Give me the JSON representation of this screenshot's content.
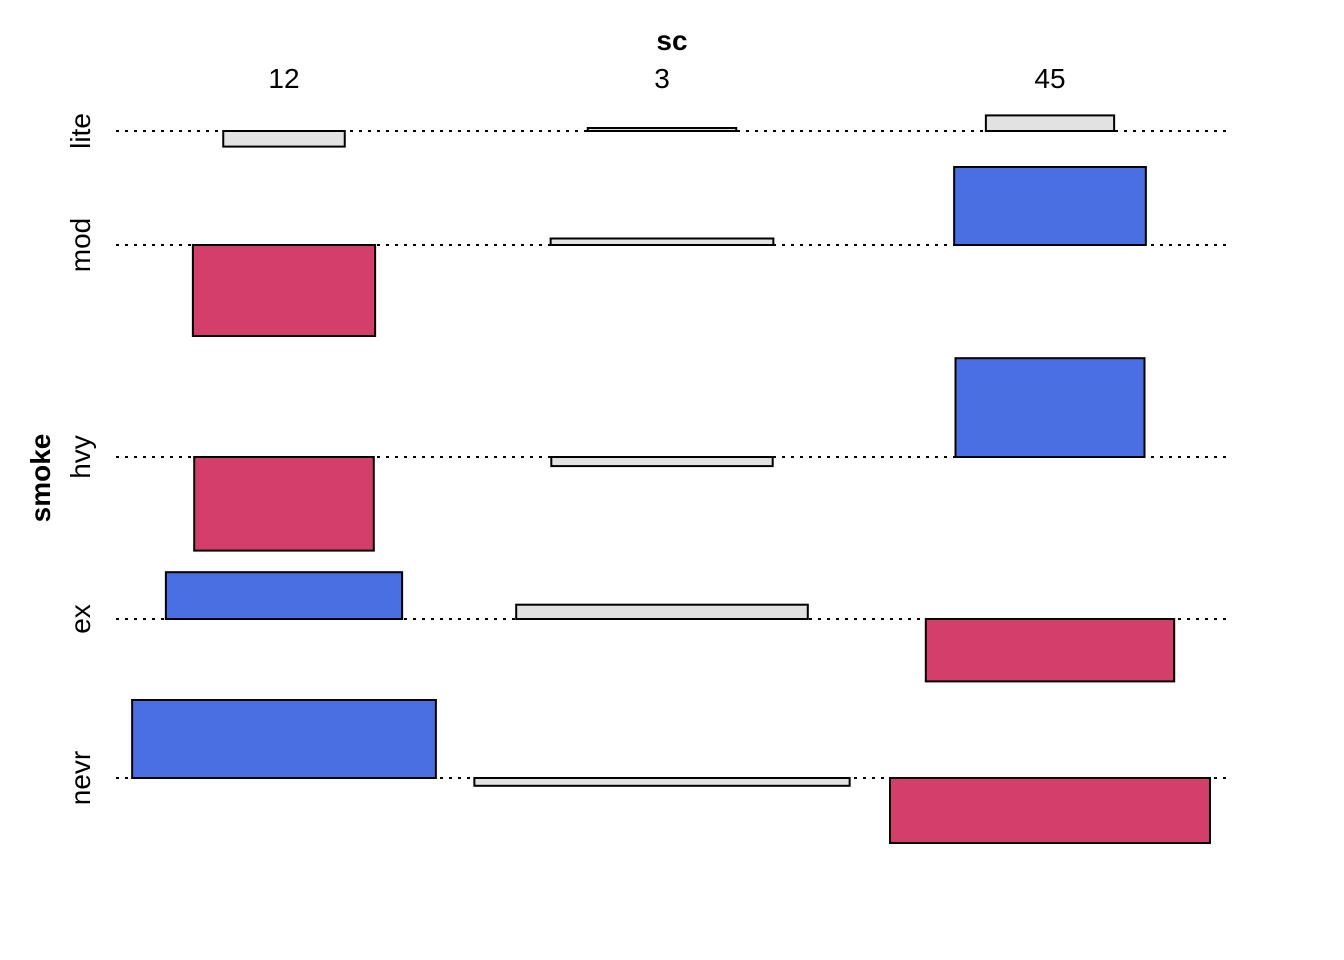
{
  "chart_data": {
    "type": "association",
    "xlabel": "sc",
    "ylabel": "smoke",
    "x_categories": [
      "12",
      "3",
      "45"
    ],
    "y_categories": [
      "lite",
      "mod",
      "hvy",
      "ex",
      "nevr"
    ],
    "cells": [
      {
        "x": "12",
        "y": "lite",
        "residual": -0.6,
        "sign": "neg",
        "width": 0.9
      },
      {
        "x": "3",
        "y": "lite",
        "residual": 0.1,
        "sign": "pos",
        "width": 1.1
      },
      {
        "x": "45",
        "y": "lite",
        "residual": 0.6,
        "sign": "pos",
        "width": 0.95
      },
      {
        "x": "12",
        "y": "mod",
        "residual": -3.5,
        "sign": "neg",
        "width": 1.35
      },
      {
        "x": "3",
        "y": "mod",
        "residual": 0.25,
        "sign": "pos",
        "width": 1.65
      },
      {
        "x": "45",
        "y": "mod",
        "residual": 3.0,
        "sign": "pos",
        "width": 1.42
      },
      {
        "x": "12",
        "y": "hvy",
        "residual": -3.6,
        "sign": "neg",
        "width": 1.33
      },
      {
        "x": "3",
        "y": "hvy",
        "residual": -0.35,
        "sign": "neg",
        "width": 1.64
      },
      {
        "x": "45",
        "y": "hvy",
        "residual": 3.8,
        "sign": "pos",
        "width": 1.4
      },
      {
        "x": "12",
        "y": "ex",
        "residual": 1.8,
        "sign": "pos",
        "width": 1.75
      },
      {
        "x": "3",
        "y": "ex",
        "residual": 0.55,
        "sign": "pos",
        "width": 2.16
      },
      {
        "x": "45",
        "y": "ex",
        "residual": -2.4,
        "sign": "neg",
        "width": 1.84
      },
      {
        "x": "12",
        "y": "nevr",
        "residual": 3.0,
        "sign": "pos",
        "width": 2.25
      },
      {
        "x": "3",
        "y": "nevr",
        "residual": -0.3,
        "sign": "neg",
        "width": 2.78
      },
      {
        "x": "45",
        "y": "nevr",
        "residual": -2.5,
        "sign": "neg",
        "width": 2.37
      }
    ],
    "colors": {
      "strong_positive": "#4a6fe3",
      "strong_negative": "#d33f6a",
      "weak": "#e2e2e2",
      "outline": "#000000"
    },
    "grid": false,
    "legend": "none"
  }
}
